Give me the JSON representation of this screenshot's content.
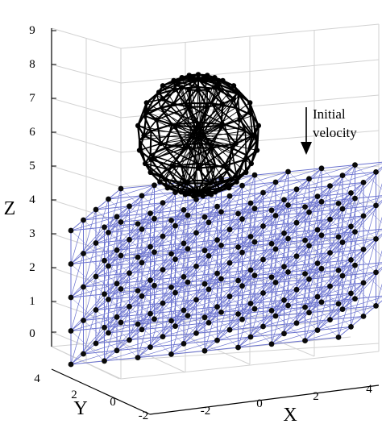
{
  "axes": {
    "z_label": "Z",
    "y_label": "Y",
    "x_label": "X",
    "z_ticks": [
      "0",
      "1",
      "2",
      "3",
      "4",
      "5",
      "6",
      "7",
      "8",
      "9"
    ],
    "y_ticks": [
      "4",
      "2",
      "0",
      "-2"
    ],
    "x_ticks": [
      "-2",
      "0",
      "2",
      "4"
    ],
    "grid": true
  },
  "annotation": {
    "line1": "Initial",
    "line2": "velocity"
  },
  "colors": {
    "lattice": "#6a72cf",
    "node": "#0a0a0a",
    "sphere": "#000000",
    "grid": "#d2d2d2"
  },
  "objects": {
    "sphere_icon": "black-wireframe-sphere-icon",
    "block_icon": "blue-lattice-block-icon",
    "arrow_icon": "down-arrow-icon"
  }
}
